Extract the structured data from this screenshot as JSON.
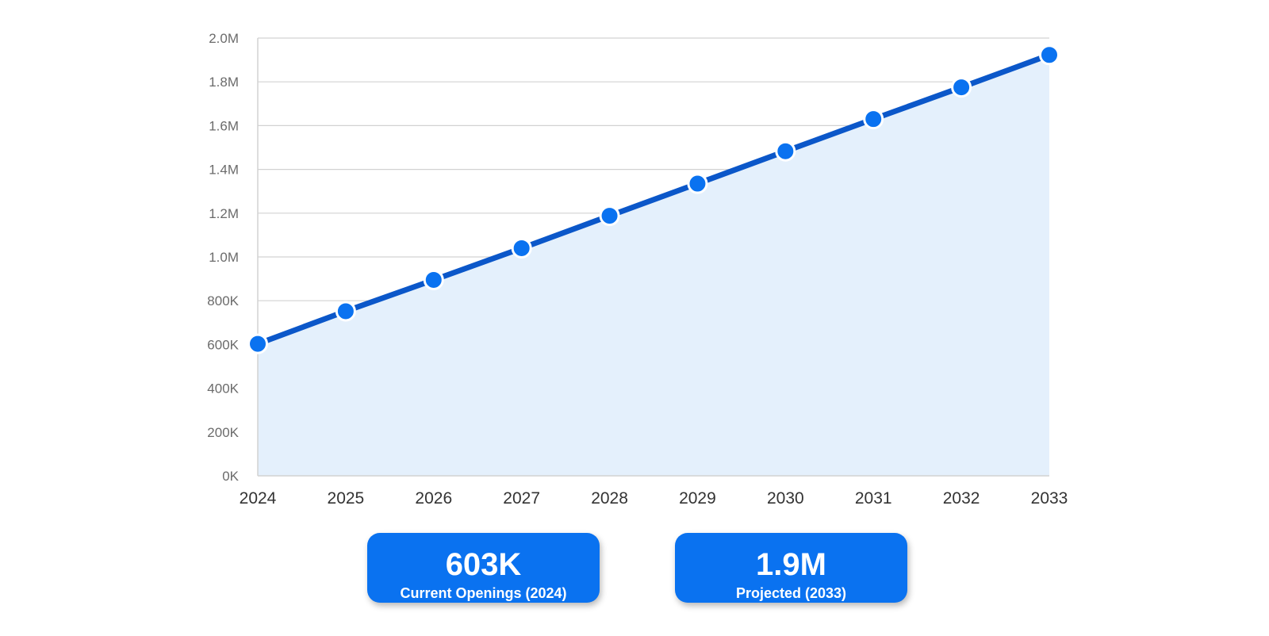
{
  "chart_data": {
    "type": "area",
    "x": [
      "2024",
      "2025",
      "2026",
      "2027",
      "2028",
      "2029",
      "2030",
      "2031",
      "2032",
      "2033"
    ],
    "series": [
      {
        "values": [
          603000,
          752000,
          895000,
          1040000,
          1188000,
          1335000,
          1483000,
          1630000,
          1775000,
          1923000
        ]
      }
    ],
    "yticks": [
      "0K",
      "200K",
      "400K",
      "600K",
      "800K",
      "1.0M",
      "1.2M",
      "1.4M",
      "1.6M",
      "1.8M",
      "2.0M"
    ],
    "ylim": [
      0,
      2000000
    ],
    "grid": true,
    "title": "",
    "xlabel": "",
    "ylabel": ""
  },
  "colors": {
    "line": "#0b57c9",
    "marker": "#0a72f0",
    "area_fill": "#e4f0fc",
    "grid": "#d2d2d2",
    "card": "#0a72f0"
  },
  "stats": [
    {
      "value": "603K",
      "label": "Current Openings (2024)"
    },
    {
      "value": "1.9M",
      "label": "Projected (2033)"
    }
  ]
}
